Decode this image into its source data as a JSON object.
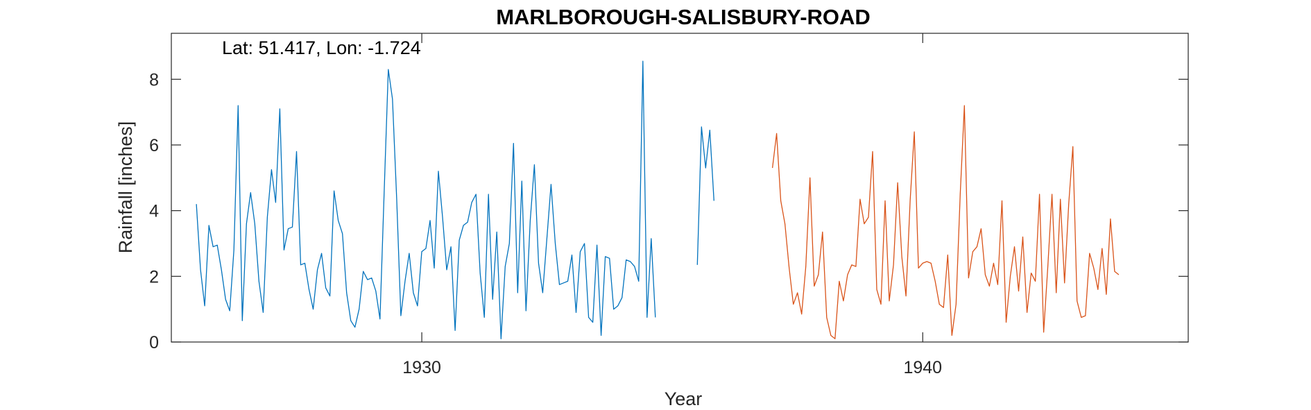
{
  "chart_data": {
    "type": "line",
    "title": "MARLBOROUGH-SALISBURY-ROAD",
    "xlabel": "Year",
    "ylabel": "Rainfall [inches]",
    "annotation": "Lat: 51.417, Lon: -1.724",
    "xlim": [
      1925.0,
      1945.3
    ],
    "ylim": [
      0,
      9.4
    ],
    "x_ticks": [
      1930,
      1940
    ],
    "y_ticks": [
      0,
      2,
      4,
      6,
      8
    ],
    "grid": false,
    "series": [
      {
        "color": "#0072BD",
        "segments": [
          {
            "x_start": 1925.5,
            "step": 0.0833,
            "values": [
              4.2,
              2.2,
              1.1,
              3.55,
              2.9,
              2.95,
              2.2,
              1.3,
              0.95,
              2.8,
              7.2,
              0.65,
              3.6,
              4.55,
              3.6,
              1.85,
              0.9,
              3.8,
              5.25,
              4.25,
              7.1,
              2.8,
              3.45,
              3.5,
              5.8,
              2.35,
              2.4,
              1.6,
              1.0,
              2.2,
              2.7,
              1.65,
              1.4,
              4.6,
              3.7,
              3.3,
              1.5,
              0.65,
              0.45,
              1.0,
              2.15,
              1.9,
              1.95,
              1.55,
              0.7,
              4.55,
              8.3,
              7.4,
              4.35,
              0.8,
              1.85,
              2.7,
              1.5,
              1.1,
              2.75,
              2.85,
              3.7,
              2.25,
              5.2,
              3.8,
              2.2,
              2.9,
              0.35,
              3.1,
              3.55,
              3.65,
              4.25,
              4.5,
              2.1,
              0.75,
              4.5,
              1.3,
              3.35,
              0.1,
              2.3,
              3.0,
              6.05,
              1.5,
              4.9,
              0.95,
              3.7,
              5.4,
              2.4,
              1.5,
              3.15,
              4.8,
              3.0,
              1.75,
              1.8,
              1.85,
              2.65,
              0.9,
              2.75,
              3.0,
              0.75,
              0.6,
              2.95,
              0.2,
              2.6,
              2.55,
              1.0,
              1.1,
              1.35,
              2.5,
              2.45,
              2.3,
              1.85,
              8.55,
              0.75,
              3.15,
              0.75
            ]
          },
          {
            "x_start": 1935.5,
            "step": 0.0833,
            "values": [
              2.35,
              6.55,
              5.3,
              6.45,
              4.3
            ]
          }
        ]
      },
      {
        "color": "#D95319",
        "segments": [
          {
            "x_start": 1937.0,
            "step": 0.0833,
            "values": [
              5.3,
              6.35,
              4.3,
              3.6,
              2.25,
              1.15,
              1.5,
              0.85,
              2.3,
              5.0,
              1.7,
              2.05,
              3.35,
              0.75,
              0.2,
              0.1,
              1.85,
              1.25,
              2.05,
              2.35,
              2.3,
              4.35,
              3.6,
              3.8,
              5.8,
              1.6,
              1.15,
              4.3,
              1.25,
              2.35,
              4.85,
              2.6,
              1.4,
              4.3,
              6.4,
              2.25,
              2.4,
              2.45,
              2.4,
              1.85,
              1.15,
              1.05,
              2.65,
              0.2,
              1.15,
              4.5,
              7.2,
              1.95,
              2.75,
              2.9,
              3.45,
              2.05,
              1.7,
              2.4,
              1.75,
              4.3,
              0.6,
              2.0,
              2.9,
              1.55,
              3.2,
              0.9,
              2.1,
              1.85,
              4.5,
              0.3,
              2.3,
              4.5,
              1.5,
              4.35,
              1.8,
              4.2,
              5.95,
              1.25,
              0.75,
              0.8,
              2.7,
              2.25,
              1.6,
              2.85,
              1.45,
              3.75,
              2.15,
              2.05
            ]
          }
        ]
      }
    ]
  }
}
